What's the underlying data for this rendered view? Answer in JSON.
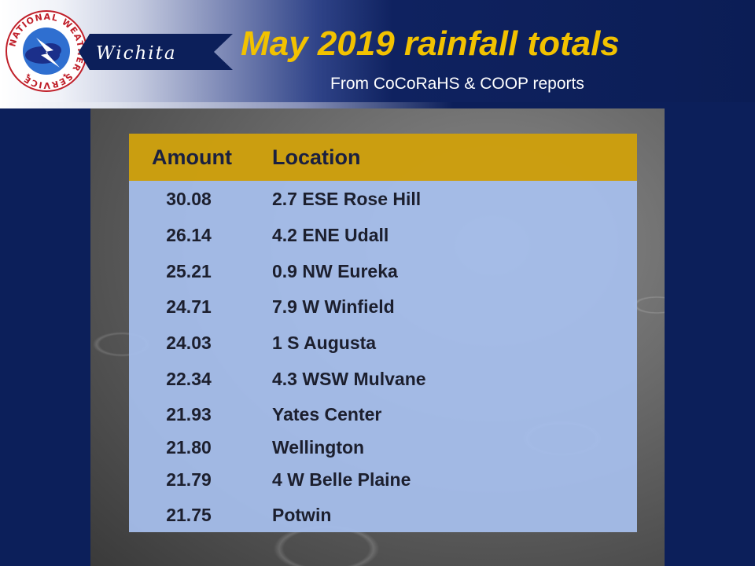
{
  "header": {
    "office": "Wichita",
    "title": "May 2019 rainfall totals",
    "subtitle": "From CoCoRaHS & COOP reports",
    "logo_text": "NATIONAL WEATHER SERVICE"
  },
  "table": {
    "columns": [
      "Amount",
      "Location"
    ],
    "rows": [
      {
        "amount": "30.08",
        "location": "2.7 ESE Rose Hill"
      },
      {
        "amount": "26.14",
        "location": "4.2 ENE Udall"
      },
      {
        "amount": "25.21",
        "location": "0.9 NW Eureka"
      },
      {
        "amount": "24.71",
        "location": "7.9 W Winfield"
      },
      {
        "amount": "24.03",
        "location": "1 S Augusta"
      },
      {
        "amount": "22.34",
        "location": "4.3 WSW Mulvane"
      },
      {
        "amount": "21.93",
        "location": "Yates Center"
      },
      {
        "amount": "21.80",
        "location": "Wellington"
      },
      {
        "amount": "21.79",
        "location": "4 W Belle Plaine"
      },
      {
        "amount": "21.75",
        "location": "Potwin"
      }
    ]
  },
  "colors": {
    "background": "#0c1f5a",
    "title": "#f2c200",
    "table_header": "#ce9c00",
    "table_body": "#a7c0ee"
  }
}
